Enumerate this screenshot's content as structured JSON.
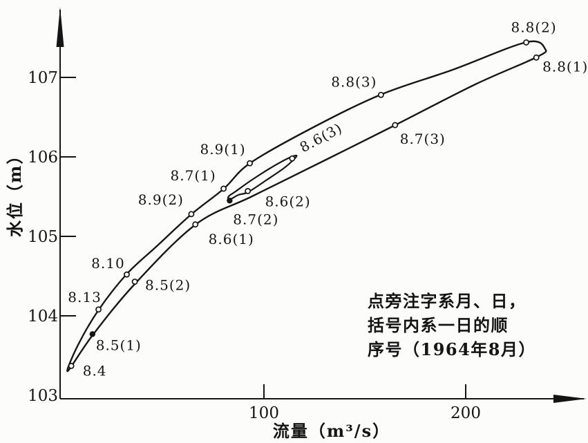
{
  "figure": {
    "background": "#fcfcfa",
    "ink": "#141414"
  },
  "y_axis": {
    "title": "水位（m）",
    "ticks": [
      {
        "label": "107",
        "value": 107
      },
      {
        "label": "106",
        "value": 106
      },
      {
        "label": "105",
        "value": 105
      },
      {
        "label": "104",
        "value": 104
      },
      {
        "label": "103",
        "value": 103
      }
    ]
  },
  "x_axis": {
    "title": "流量（m³/s）",
    "ticks": [
      {
        "label": "100",
        "value": 100
      },
      {
        "label": "200",
        "value": 200
      }
    ]
  },
  "note": {
    "lines": [
      "点旁注字系月、日，",
      "括号内系一日的顺",
      "序号（1964年8月）"
    ]
  },
  "chart_data": {
    "type": "line",
    "xlabel": "流量（m³/s）",
    "ylabel": "水位（m）",
    "xlim": [
      0,
      260
    ],
    "ylim": [
      103,
      107.6
    ],
    "x_ticks": [
      100,
      200
    ],
    "y_ticks": [
      103,
      104,
      105,
      106,
      107
    ],
    "grid": false,
    "legend": "none",
    "series": [
      {
        "name": "stage-discharge-loop-1964-08",
        "points": [
          {
            "label": "8.4",
            "discharge_m3s": 4.5,
            "stage_m": 103.37,
            "marker": "open",
            "label_offset": [
              34,
              7
            ]
          },
          {
            "label": "8.5(1)",
            "discharge_m3s": 15,
            "stage_m": 103.77,
            "marker": "filled",
            "label_offset": [
              38,
              16
            ]
          },
          {
            "label": "8.5(2)",
            "discharge_m3s": 36,
            "stage_m": 104.43,
            "marker": "open",
            "label_offset": [
              48,
              5
            ]
          },
          {
            "label": "8.6(1)",
            "discharge_m3s": 66,
            "stage_m": 105.15,
            "marker": "open",
            "label_offset": [
              52,
              21
            ]
          },
          {
            "label": "8.6(2)",
            "discharge_m3s": 92,
            "stage_m": 105.57,
            "marker": "open",
            "label_offset": [
              58,
              15
            ]
          },
          {
            "label": "8.6(3)",
            "discharge_m3s": 114,
            "stage_m": 105.98,
            "marker": "open",
            "label_offset": [
              45,
              -31
            ],
            "label_rotate": -28
          },
          {
            "label": "8.7(1)",
            "discharge_m3s": 80,
            "stage_m": 105.6,
            "marker": "open",
            "label_offset": [
              -44,
              -19
            ]
          },
          {
            "label": "8.7(2)",
            "discharge_m3s": 83,
            "stage_m": 105.45,
            "marker": "filled",
            "label_offset": [
              38,
              27
            ]
          },
          {
            "label": "8.7(3)",
            "discharge_m3s": 165,
            "stage_m": 106.4,
            "marker": "open",
            "label_offset": [
              40,
              20
            ]
          },
          {
            "label": "8.8(1)",
            "discharge_m3s": 235,
            "stage_m": 107.25,
            "marker": "open",
            "label_offset": [
              42,
              13
            ]
          },
          {
            "label": "8.8(2)",
            "discharge_m3s": 230,
            "stage_m": 107.44,
            "marker": "open",
            "label_offset": [
              11,
              -22
            ]
          },
          {
            "label": "8.8(3)",
            "discharge_m3s": 158,
            "stage_m": 106.78,
            "marker": "open",
            "label_offset": [
              -39,
              -19
            ]
          },
          {
            "label": "8.9(1)",
            "discharge_m3s": 93,
            "stage_m": 105.92,
            "marker": "open",
            "label_offset": [
              -39,
              -20
            ]
          },
          {
            "label": "8.9(2)",
            "discharge_m3s": 64,
            "stage_m": 105.28,
            "marker": "open",
            "label_offset": [
              -44,
              -21
            ]
          },
          {
            "label": "8.10",
            "discharge_m3s": 32,
            "stage_m": 104.52,
            "marker": "open",
            "label_offset": [
              -27,
              -16
            ]
          },
          {
            "label": "8.13",
            "discharge_m3s": 18,
            "stage_m": 104.08,
            "marker": "open",
            "label_offset": [
              -20,
              -18
            ]
          }
        ]
      }
    ]
  }
}
